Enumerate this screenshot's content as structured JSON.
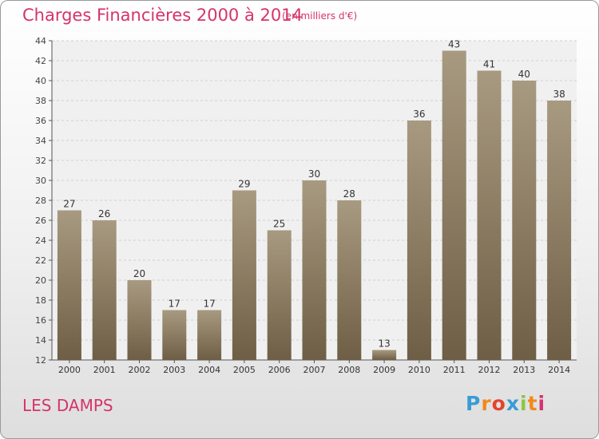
{
  "header": {
    "title": "Charges Financières 2000 à 2014",
    "unit": "(en milliers d'€)"
  },
  "footer": {
    "commune": "LES DAMPS",
    "logo_text": "Proxiti",
    "logo_colors": [
      "#3a9bd5",
      "#f08a1c",
      "#e4442b",
      "#3a9bd5",
      "#8cc63f",
      "#f08a1c",
      "#d6336c"
    ]
  },
  "colors": {
    "title": "#d6336c",
    "bar_top": "#a89a80",
    "bar_bottom": "#6e5e45",
    "plot_bg": "#f0f0f0",
    "grid": "#cfcfcf"
  },
  "chart_data": {
    "type": "bar",
    "title": "Charges Financières 2000 à 2014",
    "subtitle": "(en milliers d'€)",
    "categories": [
      "2000",
      "2001",
      "2002",
      "2003",
      "2004",
      "2005",
      "2006",
      "2007",
      "2008",
      "2009",
      "2010",
      "2011",
      "2012",
      "2013",
      "2014"
    ],
    "values": [
      27,
      26,
      20,
      17,
      17,
      29,
      25,
      30,
      28,
      13,
      36,
      43,
      41,
      40,
      38
    ],
    "ylim": [
      12,
      44
    ],
    "yticks": [
      12,
      14,
      16,
      18,
      20,
      22,
      24,
      26,
      28,
      30,
      32,
      34,
      36,
      38,
      40,
      42,
      44
    ],
    "grid": true,
    "data_labels": true
  }
}
